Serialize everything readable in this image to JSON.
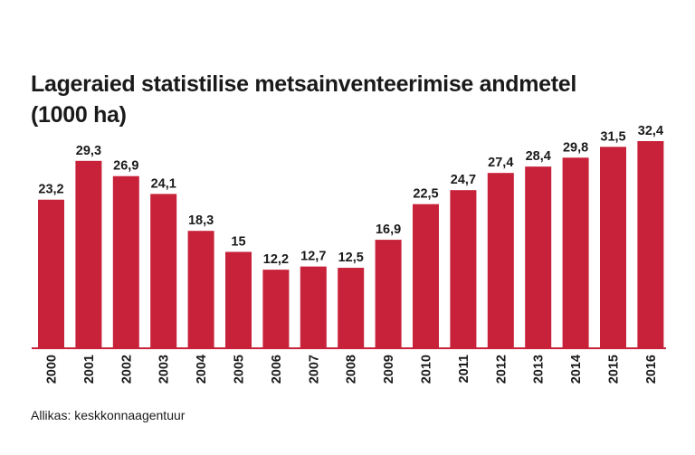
{
  "title_line1": "Lageraied statistilise metsainventeerimise andmetel",
  "title_line2": "(1000 ha)",
  "source": "Allikas: keskkonnaagentuur",
  "colors": {
    "bar": "#c8213a",
    "axis": "#c8213a",
    "text": "#1a1a1a"
  },
  "chart_data": {
    "type": "bar",
    "title": "Lageraied statistilise metsainventeerimise andmetel (1000 ha)",
    "xlabel": "",
    "ylabel": "",
    "categories": [
      "2000",
      "2001",
      "2002",
      "2003",
      "2004",
      "2005",
      "2006",
      "2007",
      "2008",
      "2009",
      "2010",
      "2011",
      "2012",
      "2013",
      "2014",
      "2015",
      "2016"
    ],
    "values": [
      23.2,
      29.3,
      26.9,
      24.1,
      18.3,
      15,
      12.2,
      12.7,
      12.5,
      16.9,
      22.5,
      24.7,
      27.4,
      28.4,
      29.8,
      31.5,
      32.4
    ],
    "value_labels": [
      "23,2",
      "29,3",
      "26,9",
      "24,1",
      "18,3",
      "15",
      "12,2",
      "12,7",
      "12,5",
      "16,9",
      "22,5",
      "24,7",
      "27,4",
      "28,4",
      "29,8",
      "31,5",
      "32,4"
    ],
    "ylim": [
      0,
      32.4
    ]
  }
}
